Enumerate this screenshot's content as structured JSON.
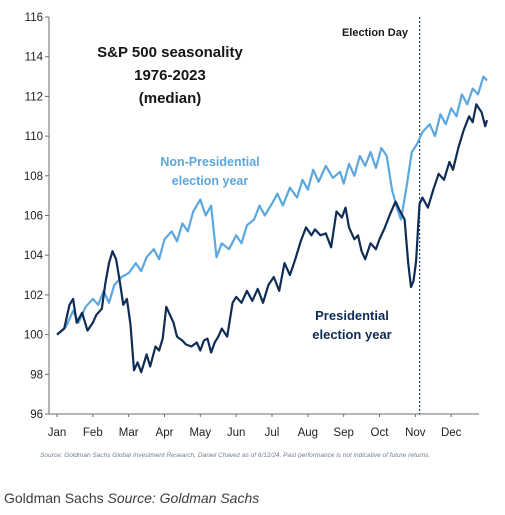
{
  "chart_data": {
    "type": "line",
    "title_lines": [
      "S&P 500 seasonality",
      "1976-2023",
      "(median)"
    ],
    "xlabel": "",
    "ylabel": "",
    "ylim": [
      96,
      116
    ],
    "yticks": [
      96,
      98,
      100,
      102,
      104,
      106,
      108,
      110,
      112,
      114,
      116
    ],
    "x_range": [
      0,
      12
    ],
    "x_ticks": [
      {
        "label": "Jan",
        "x": 0
      },
      {
        "label": "Feb",
        "x": 1
      },
      {
        "label": "Mar",
        "x": 2
      },
      {
        "label": "Apr",
        "x": 3
      },
      {
        "label": "May",
        "x": 4
      },
      {
        "label": "Jun",
        "x": 5
      },
      {
        "label": "Jul",
        "x": 6
      },
      {
        "label": "Aug",
        "x": 7
      },
      {
        "label": "Sep",
        "x": 8
      },
      {
        "label": "Oct",
        "x": 9
      },
      {
        "label": "Nov",
        "x": 10
      },
      {
        "label": "Dec",
        "x": 11
      }
    ],
    "grid": false,
    "event_line": {
      "label": "Election Day",
      "x": 10.12
    },
    "series": [
      {
        "name_lines": [
          "Non-Presidential",
          "election year"
        ],
        "color": "#5ba7de",
        "points": [
          [
            0.0,
            100.0
          ],
          [
            0.25,
            100.4
          ],
          [
            0.45,
            101.2
          ],
          [
            0.6,
            100.6
          ],
          [
            0.8,
            101.4
          ],
          [
            1.0,
            101.8
          ],
          [
            1.15,
            101.5
          ],
          [
            1.3,
            102.2
          ],
          [
            1.45,
            101.6
          ],
          [
            1.6,
            102.5
          ],
          [
            1.8,
            102.9
          ],
          [
            2.0,
            103.1
          ],
          [
            2.2,
            103.6
          ],
          [
            2.35,
            103.2
          ],
          [
            2.5,
            103.9
          ],
          [
            2.7,
            104.3
          ],
          [
            2.85,
            103.8
          ],
          [
            3.0,
            104.8
          ],
          [
            3.2,
            105.2
          ],
          [
            3.35,
            104.7
          ],
          [
            3.5,
            105.6
          ],
          [
            3.65,
            105.2
          ],
          [
            3.8,
            106.2
          ],
          [
            4.0,
            106.8
          ],
          [
            4.15,
            106.0
          ],
          [
            4.3,
            106.5
          ],
          [
            4.45,
            103.9
          ],
          [
            4.6,
            104.6
          ],
          [
            4.8,
            104.3
          ],
          [
            5.0,
            105.0
          ],
          [
            5.15,
            104.6
          ],
          [
            5.3,
            105.5
          ],
          [
            5.5,
            105.8
          ],
          [
            5.65,
            106.5
          ],
          [
            5.8,
            106.0
          ],
          [
            6.0,
            106.6
          ],
          [
            6.15,
            107.1
          ],
          [
            6.3,
            106.5
          ],
          [
            6.5,
            107.4
          ],
          [
            6.7,
            106.9
          ],
          [
            6.85,
            107.8
          ],
          [
            7.0,
            107.3
          ],
          [
            7.15,
            108.3
          ],
          [
            7.3,
            107.7
          ],
          [
            7.5,
            108.5
          ],
          [
            7.7,
            107.9
          ],
          [
            7.9,
            108.2
          ],
          [
            8.0,
            107.6
          ],
          [
            8.15,
            108.6
          ],
          [
            8.3,
            108.0
          ],
          [
            8.45,
            109.0
          ],
          [
            8.6,
            108.5
          ],
          [
            8.75,
            109.2
          ],
          [
            8.9,
            108.4
          ],
          [
            9.05,
            109.4
          ],
          [
            9.2,
            109.0
          ],
          [
            9.35,
            107.3
          ],
          [
            9.5,
            106.3
          ],
          [
            9.6,
            105.8
          ],
          [
            9.75,
            107.4
          ],
          [
            9.9,
            109.2
          ],
          [
            10.05,
            109.6
          ],
          [
            10.2,
            110.2
          ],
          [
            10.4,
            110.6
          ],
          [
            10.55,
            110.0
          ],
          [
            10.7,
            111.1
          ],
          [
            10.85,
            110.6
          ],
          [
            11.0,
            111.4
          ],
          [
            11.15,
            111.0
          ],
          [
            11.3,
            112.1
          ],
          [
            11.45,
            111.6
          ],
          [
            11.6,
            112.4
          ],
          [
            11.75,
            112.1
          ],
          [
            11.9,
            113.0
          ],
          [
            12.0,
            112.8
          ]
        ]
      },
      {
        "name_lines": [
          "Presidential",
          "election year"
        ],
        "color": "#0f2c54",
        "points": [
          [
            0.0,
            100.0
          ],
          [
            0.2,
            100.3
          ],
          [
            0.35,
            101.5
          ],
          [
            0.45,
            101.8
          ],
          [
            0.55,
            100.6
          ],
          [
            0.7,
            101.1
          ],
          [
            0.85,
            100.2
          ],
          [
            1.0,
            100.6
          ],
          [
            1.1,
            101.0
          ],
          [
            1.25,
            101.3
          ],
          [
            1.35,
            102.6
          ],
          [
            1.45,
            103.6
          ],
          [
            1.55,
            104.2
          ],
          [
            1.65,
            103.8
          ],
          [
            1.75,
            102.7
          ],
          [
            1.85,
            101.5
          ],
          [
            1.95,
            101.8
          ],
          [
            2.05,
            100.5
          ],
          [
            2.15,
            98.2
          ],
          [
            2.25,
            98.6
          ],
          [
            2.35,
            98.1
          ],
          [
            2.5,
            99.0
          ],
          [
            2.6,
            98.4
          ],
          [
            2.75,
            99.4
          ],
          [
            2.85,
            99.2
          ],
          [
            2.95,
            99.8
          ],
          [
            3.05,
            101.4
          ],
          [
            3.15,
            101.0
          ],
          [
            3.25,
            100.6
          ],
          [
            3.35,
            99.9
          ],
          [
            3.5,
            99.7
          ],
          [
            3.6,
            99.5
          ],
          [
            3.75,
            99.4
          ],
          [
            3.9,
            99.6
          ],
          [
            4.0,
            99.2
          ],
          [
            4.1,
            99.7
          ],
          [
            4.2,
            99.8
          ],
          [
            4.3,
            99.1
          ],
          [
            4.4,
            99.6
          ],
          [
            4.5,
            99.9
          ],
          [
            4.6,
            100.3
          ],
          [
            4.75,
            99.9
          ],
          [
            4.9,
            101.6
          ],
          [
            5.0,
            101.9
          ],
          [
            5.15,
            101.6
          ],
          [
            5.3,
            102.2
          ],
          [
            5.45,
            101.7
          ],
          [
            5.6,
            102.3
          ],
          [
            5.75,
            101.6
          ],
          [
            5.9,
            102.5
          ],
          [
            6.05,
            102.9
          ],
          [
            6.2,
            102.2
          ],
          [
            6.35,
            103.6
          ],
          [
            6.5,
            103.0
          ],
          [
            6.65,
            103.8
          ],
          [
            6.8,
            104.7
          ],
          [
            6.95,
            105.4
          ],
          [
            7.1,
            105.0
          ],
          [
            7.2,
            105.3
          ],
          [
            7.35,
            105.0
          ],
          [
            7.5,
            105.1
          ],
          [
            7.65,
            104.4
          ],
          [
            7.8,
            106.2
          ],
          [
            7.95,
            105.9
          ],
          [
            8.05,
            106.4
          ],
          [
            8.15,
            105.4
          ],
          [
            8.3,
            104.8
          ],
          [
            8.4,
            105.0
          ],
          [
            8.5,
            104.2
          ],
          [
            8.6,
            103.8
          ],
          [
            8.75,
            104.6
          ],
          [
            8.9,
            104.3
          ],
          [
            9.0,
            104.8
          ],
          [
            9.15,
            105.4
          ],
          [
            9.3,
            106.1
          ],
          [
            9.45,
            106.7
          ],
          [
            9.55,
            106.3
          ],
          [
            9.7,
            105.8
          ],
          [
            9.8,
            103.6
          ],
          [
            9.88,
            102.4
          ],
          [
            9.95,
            102.7
          ],
          [
            10.02,
            103.7
          ],
          [
            10.08,
            105.5
          ],
          [
            10.12,
            106.6
          ],
          [
            10.2,
            106.9
          ],
          [
            10.35,
            106.4
          ],
          [
            10.5,
            107.3
          ],
          [
            10.65,
            108.1
          ],
          [
            10.8,
            107.8
          ],
          [
            10.95,
            108.7
          ],
          [
            11.05,
            108.3
          ],
          [
            11.2,
            109.4
          ],
          [
            11.35,
            110.3
          ],
          [
            11.5,
            111.0
          ],
          [
            11.6,
            110.7
          ],
          [
            11.7,
            111.6
          ],
          [
            11.85,
            111.2
          ],
          [
            11.95,
            110.5
          ],
          [
            12.0,
            110.8
          ]
        ]
      }
    ]
  },
  "source_note": "Source: Goldman Sachs Global Investment Research, Daniel Chavez  as of 6/12/24. Past performance is not indicative of future returns.",
  "caption": {
    "brand": "Goldman Sachs",
    "source": "Source: Goldman Sachs"
  }
}
